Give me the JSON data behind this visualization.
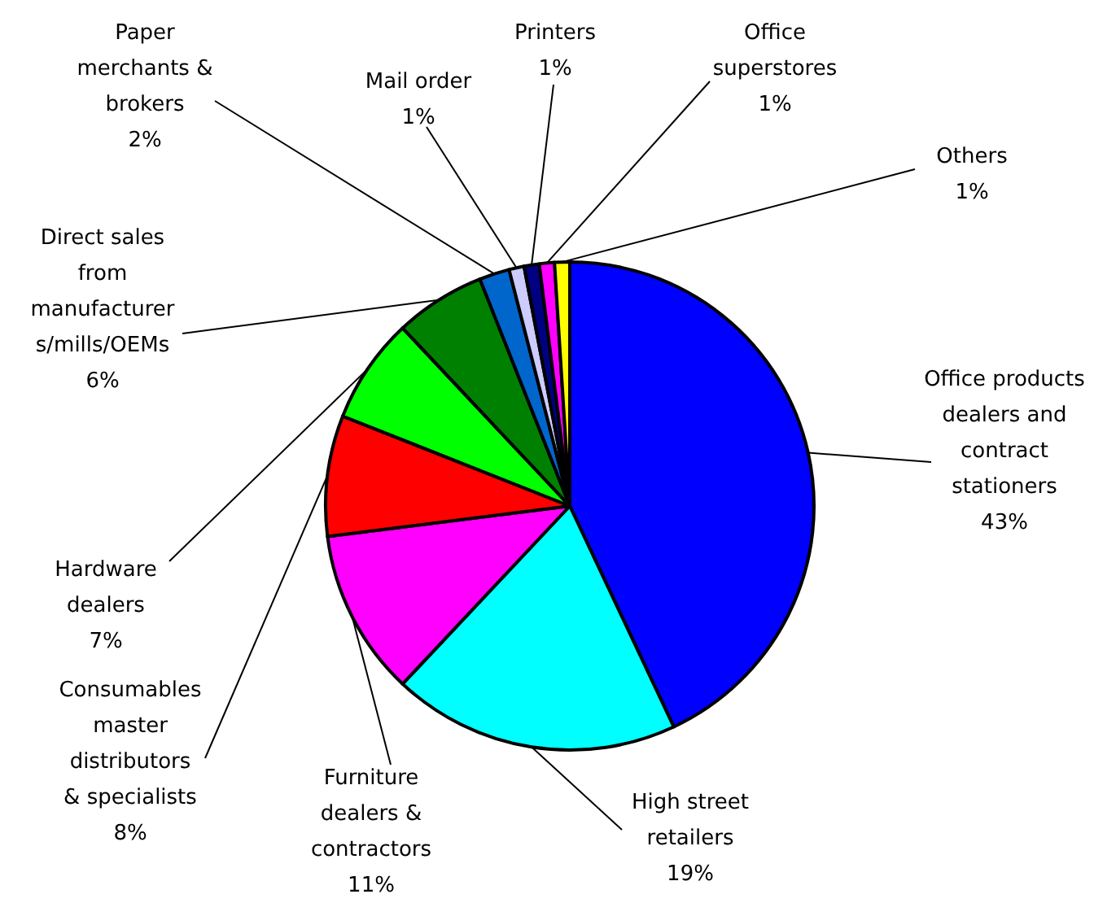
{
  "chart_data": {
    "type": "pie",
    "categories": [
      "Office products dealers and contract stationers",
      "High street retailers",
      "Furniture dealers & contractors",
      "Consumables master distributors & specialists",
      "Hardware dealers",
      "Direct sales from manufacturers/mills/OEMs",
      "Paper merchants & brokers",
      "Mail order",
      "Printers",
      "Office superstores",
      "Others"
    ],
    "values": [
      43,
      19,
      11,
      8,
      7,
      6,
      2,
      1,
      1,
      1,
      1
    ],
    "colors": [
      "#0000ff",
      "#00ffff",
      "#ff00ff",
      "#ff0000",
      "#00ff00",
      "#008000",
      "#0066cc",
      "#ccccff",
      "#000080",
      "#ff00ff",
      "#ffff00"
    ],
    "value_labels": [
      "43%",
      "19%",
      "11%",
      "8%",
      "7%",
      "6%",
      "2%",
      "1%",
      "1%",
      "1%",
      "1%"
    ]
  }
}
